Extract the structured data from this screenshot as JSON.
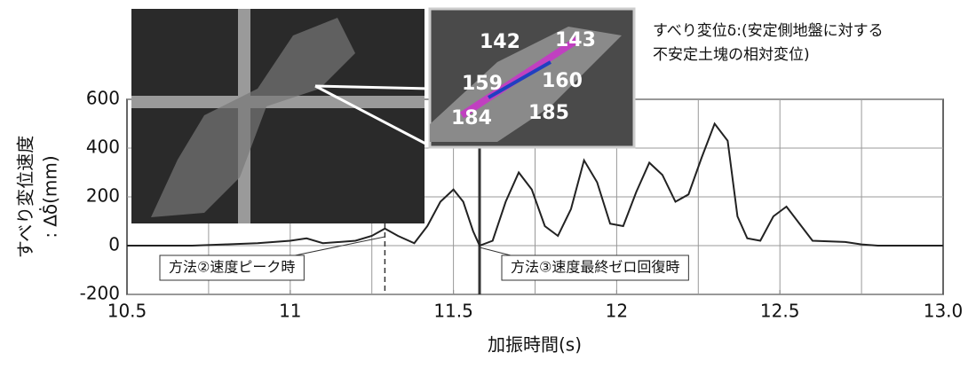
{
  "chart_data": {
    "type": "line",
    "xlabel": "加振時間(s)",
    "ylabel": "すべり変位速度",
    "ylabel2": ": ∆δ̇(mm)",
    "annotation": [
      "すべり変位δ:(安定側地盤に対する",
      "不安定土塊の相対変位)"
    ],
    "xlim": [
      10.5,
      13.0
    ],
    "ylim": [
      -200,
      600
    ],
    "xticks": [
      10.5,
      11.0,
      11.5,
      12.0,
      12.5,
      {
        "value": 13.0,
        "label": "13.0"
      }
    ],
    "yticks": [
      -200,
      0,
      200,
      400,
      600
    ],
    "xgrid": [
      10.75,
      11.0,
      11.25,
      11.5,
      11.75,
      12.0,
      12.25,
      12.5,
      12.75
    ],
    "grid": true,
    "markers": [
      {
        "x": 11.29,
        "label": "方法②速度ピーク時",
        "style": "dashed"
      },
      {
        "x": 11.58,
        "label": "方法③速度最終ゼロ回復時",
        "style": "solid"
      }
    ],
    "inset_labels": [
      "142",
      "143",
      "159",
      "160",
      "184",
      "185"
    ],
    "series": [
      {
        "color": "#222222",
        "x": [
          10.5,
          10.7,
          10.8,
          10.9,
          11.0,
          11.05,
          11.1,
          11.2,
          11.25,
          11.29,
          11.33,
          11.38,
          11.42,
          11.46,
          11.5,
          11.53,
          11.56,
          11.58,
          11.62,
          11.66,
          11.7,
          11.74,
          11.78,
          11.82,
          11.86,
          11.9,
          11.94,
          11.98,
          12.02,
          12.06,
          12.1,
          12.14,
          12.18,
          12.22,
          12.26,
          12.3,
          12.34,
          12.37,
          12.4,
          12.44,
          12.48,
          12.52,
          12.56,
          12.6,
          12.7,
          12.75,
          12.8,
          13.0
        ],
        "values": [
          0,
          0,
          5,
          10,
          20,
          30,
          10,
          20,
          40,
          70,
          40,
          10,
          80,
          180,
          230,
          180,
          60,
          0,
          20,
          180,
          300,
          230,
          80,
          40,
          150,
          350,
          260,
          90,
          80,
          220,
          340,
          290,
          180,
          210,
          360,
          500,
          430,
          120,
          30,
          20,
          120,
          160,
          90,
          20,
          15,
          5,
          0,
          0
        ]
      }
    ]
  }
}
